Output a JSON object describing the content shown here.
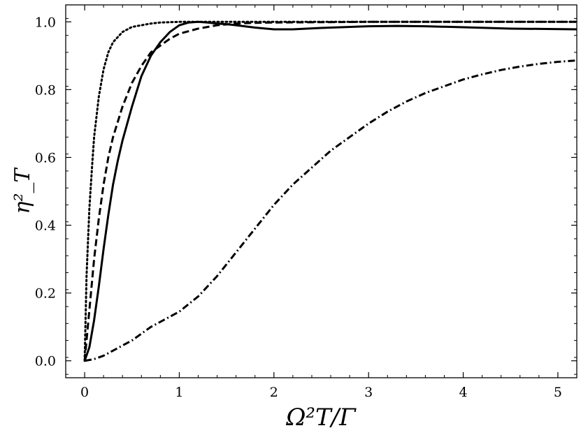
{
  "chart_data": {
    "type": "line",
    "title": "",
    "xlabel": "Ω²T/Γ",
    "ylabel": "η²_T",
    "xlim": [
      -0.2,
      5.2
    ],
    "ylim": [
      -0.05,
      1.05
    ],
    "xticks": [
      0,
      1,
      2,
      3,
      4,
      5
    ],
    "yticks": [
      0.0,
      0.2,
      0.4,
      0.6,
      0.8,
      1.0
    ],
    "xtick_labels": [
      "0",
      "1",
      "2",
      "3",
      "4",
      "5"
    ],
    "ytick_labels": [
      "0.0",
      "0.2",
      "0.4",
      "0.6",
      "0.8",
      "1.0"
    ],
    "grid": false,
    "legend": "none",
    "series": [
      {
        "style": "dotted",
        "color": "#000000",
        "x": [
          0,
          0.02,
          0.05,
          0.08,
          0.1,
          0.15,
          0.2,
          0.25,
          0.3,
          0.4,
          0.5,
          0.6,
          0.7,
          0.8,
          1.0,
          1.2,
          1.5,
          2.0,
          3.0,
          4.0,
          5.2
        ],
        "y": [
          0,
          0.25,
          0.45,
          0.58,
          0.66,
          0.78,
          0.86,
          0.91,
          0.94,
          0.97,
          0.985,
          0.99,
          0.995,
          0.998,
          1.0,
          1.0,
          1.0,
          1.0,
          1.0,
          1.0,
          1.0
        ]
      },
      {
        "style": "dashed",
        "color": "#000000",
        "x": [
          0,
          0.05,
          0.1,
          0.15,
          0.2,
          0.25,
          0.3,
          0.4,
          0.5,
          0.6,
          0.7,
          0.8,
          0.9,
          1.0,
          1.2,
          1.4,
          1.6,
          1.8,
          2.0,
          2.5,
          3.0,
          4.0,
          5.2
        ],
        "y": [
          0,
          0.15,
          0.3,
          0.42,
          0.52,
          0.6,
          0.66,
          0.75,
          0.82,
          0.87,
          0.91,
          0.93,
          0.95,
          0.965,
          0.98,
          0.99,
          0.995,
          0.997,
          0.998,
          0.999,
          1.0,
          1.0,
          1.0
        ]
      },
      {
        "style": "solid",
        "color": "#000000",
        "x": [
          0,
          0.05,
          0.1,
          0.15,
          0.2,
          0.25,
          0.3,
          0.35,
          0.4,
          0.5,
          0.6,
          0.7,
          0.8,
          0.9,
          1.0,
          1.1,
          1.2,
          1.3,
          1.4,
          1.5,
          1.6,
          1.8,
          2.0,
          2.2,
          2.5,
          3.0,
          3.3,
          3.6,
          4.0,
          4.5,
          5.2
        ],
        "y": [
          0,
          0.04,
          0.12,
          0.22,
          0.33,
          0.43,
          0.52,
          0.59,
          0.65,
          0.75,
          0.84,
          0.9,
          0.94,
          0.97,
          0.99,
          0.998,
          1.0,
          0.998,
          0.995,
          0.993,
          0.99,
          0.983,
          0.978,
          0.978,
          0.982,
          0.987,
          0.988,
          0.987,
          0.984,
          0.98,
          0.978
        ]
      },
      {
        "style": "dashdot",
        "color": "#000000",
        "x": [
          0,
          0.1,
          0.2,
          0.3,
          0.4,
          0.5,
          0.6,
          0.7,
          0.8,
          0.9,
          1.0,
          1.2,
          1.4,
          1.6,
          1.8,
          2.0,
          2.2,
          2.4,
          2.6,
          2.8,
          3.0,
          3.2,
          3.4,
          3.6,
          3.8,
          4.0,
          4.2,
          4.4,
          4.6,
          4.8,
          5.0,
          5.2
        ],
        "y": [
          0,
          0.005,
          0.015,
          0.03,
          0.045,
          0.06,
          0.08,
          0.1,
          0.115,
          0.13,
          0.145,
          0.19,
          0.25,
          0.32,
          0.39,
          0.46,
          0.52,
          0.57,
          0.62,
          0.66,
          0.7,
          0.735,
          0.765,
          0.79,
          0.81,
          0.83,
          0.845,
          0.858,
          0.868,
          0.876,
          0.882,
          0.886
        ]
      }
    ]
  }
}
